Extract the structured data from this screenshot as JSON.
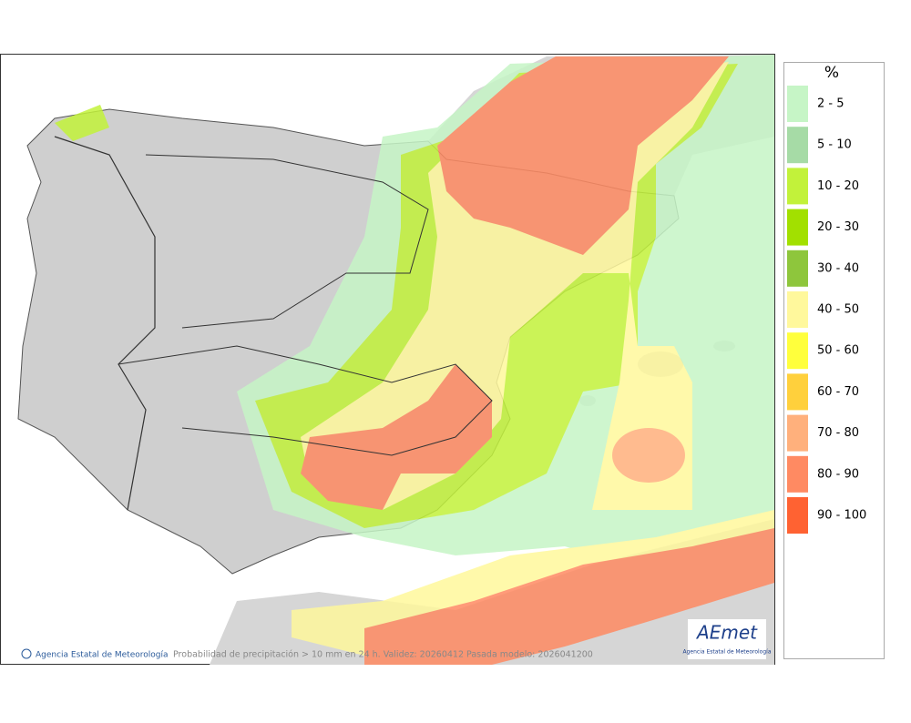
{
  "legend": {
    "title": "%",
    "items": [
      {
        "label": "2 - 5",
        "color": "#c6f5c6"
      },
      {
        "label": "5 - 10",
        "color": "#a6dba6"
      },
      {
        "label": "10 - 20",
        "color": "#c2f23a"
      },
      {
        "label": "20 - 30",
        "color": "#a2e000"
      },
      {
        "label": "30 - 40",
        "color": "#8ec63c"
      },
      {
        "label": "40 - 50",
        "color": "#fff89c"
      },
      {
        "label": "50 - 60",
        "color": "#ffff3c"
      },
      {
        "label": "60 - 70",
        "color": "#ffd03c"
      },
      {
        "label": "70 - 80",
        "color": "#ffb07c"
      },
      {
        "label": "80 - 90",
        "color": "#ff8a62"
      },
      {
        "label": "90 - 100",
        "color": "#ff6232"
      }
    ]
  },
  "footer": {
    "agency": "Agencia Estatal de Meteorología",
    "caption": "Probabilidad de precipitación > 10 mm en 24 h. Validez: 20260412 Pasada modelo: 2026041200"
  },
  "logo": {
    "name": "AEmet",
    "subtitle": "Agencia Estatal de Meteorología"
  }
}
